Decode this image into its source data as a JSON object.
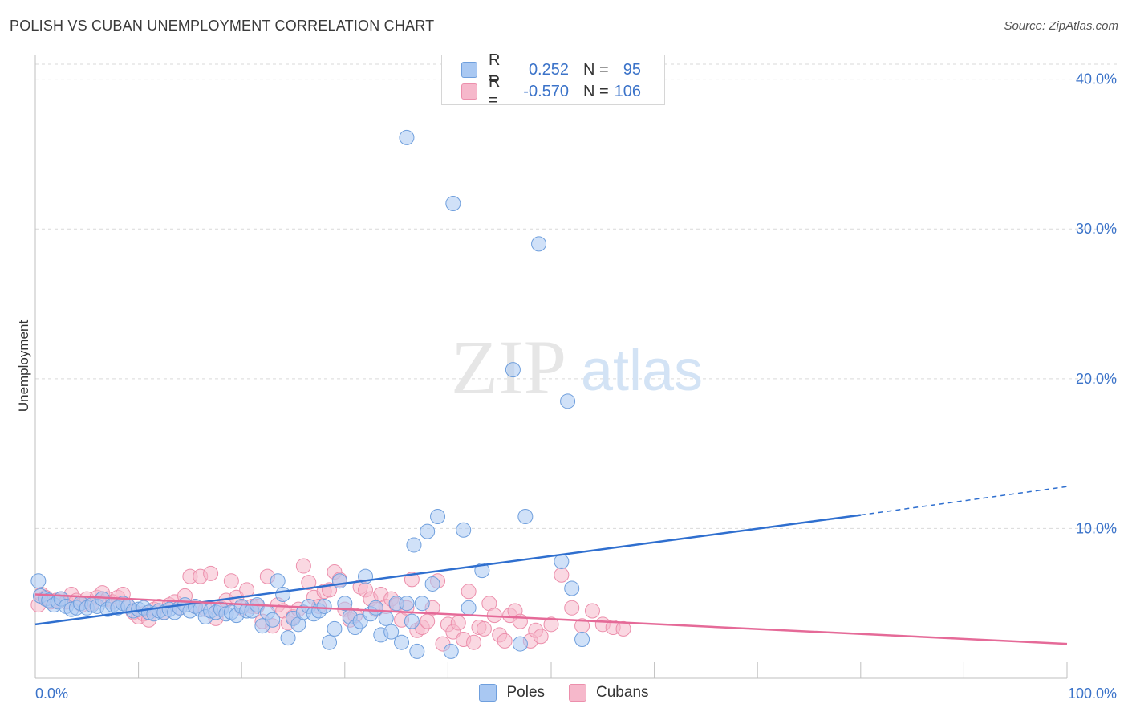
{
  "header": {
    "title": "POLISH VS CUBAN UNEMPLOYMENT CORRELATION CHART",
    "source": "Source: ZipAtlas.com"
  },
  "watermark": {
    "zip": "ZIP",
    "atlas": "atlas"
  },
  "legend": {
    "rows": [
      {
        "r_label": "R =",
        "r_value": "0.252",
        "n_label": "N =",
        "n_value": "95",
        "color": "#a9c8f2"
      },
      {
        "r_label": "R =",
        "r_value": "-0.570",
        "n_label": "N =",
        "n_value": "106",
        "color": "#f6b8cb"
      }
    ]
  },
  "bottom_legend": {
    "poles": "Poles",
    "cubans": "Cubans"
  },
  "colors": {
    "poles_fill": "#a9c8f2",
    "poles_stroke": "#6f9fdd",
    "poles_line": "#2f6fcf",
    "cubans_fill": "#f6b8cb",
    "cubans_stroke": "#ec8fac",
    "cubans_line": "#e56a98",
    "tick_text": "#3b73c9",
    "grid": "#d9d9d9"
  },
  "chart_data": {
    "type": "scatter",
    "title": "POLISH VS CUBAN UNEMPLOYMENT CORRELATION CHART",
    "xlabel": "",
    "ylabel": "Unemployment",
    "xlim": [
      0,
      100
    ],
    "ylim": [
      0,
      41
    ],
    "x_tick_labels": [
      "0.0%",
      "100.0%"
    ],
    "y_ticks": [
      10,
      20,
      30,
      40
    ],
    "y_tick_labels": [
      "10.0%",
      "20.0%",
      "30.0%",
      "40.0%"
    ],
    "grid": true,
    "legend_position": "top-center",
    "series": [
      {
        "name": "Poles",
        "r": 0.252,
        "n": 95,
        "trend": {
          "x": [
            0,
            80,
            100
          ],
          "y": [
            3.6,
            10.9,
            12.8
          ],
          "dashed_from_x": 80
        },
        "points": [
          [
            0.3,
            6.5
          ],
          [
            0.5,
            5.5
          ],
          [
            1,
            5.3
          ],
          [
            1.3,
            5.2
          ],
          [
            1.8,
            4.9
          ],
          [
            2.2,
            5.1
          ],
          [
            2.5,
            5.3
          ],
          [
            3,
            4.8
          ],
          [
            3.5,
            4.6
          ],
          [
            4,
            4.7
          ],
          [
            4.4,
            5
          ],
          [
            5,
            4.7
          ],
          [
            5.5,
            4.9
          ],
          [
            6,
            4.8
          ],
          [
            6.5,
            5.3
          ],
          [
            7,
            4.6
          ],
          [
            7.5,
            4.9
          ],
          [
            8,
            4.7
          ],
          [
            8.5,
            5
          ],
          [
            9,
            4.8
          ],
          [
            9.5,
            4.5
          ],
          [
            10,
            4.6
          ],
          [
            10.5,
            4.7
          ],
          [
            11,
            4.4
          ],
          [
            11.5,
            4.3
          ],
          [
            12,
            4.5
          ],
          [
            12.5,
            4.4
          ],
          [
            13,
            4.6
          ],
          [
            13.5,
            4.4
          ],
          [
            14,
            4.7
          ],
          [
            14.5,
            4.9
          ],
          [
            15,
            4.5
          ],
          [
            15.5,
            4.8
          ],
          [
            16,
            4.6
          ],
          [
            16.5,
            4.1
          ],
          [
            17,
            4.5
          ],
          [
            17.5,
            4.4
          ],
          [
            18,
            4.6
          ],
          [
            18.5,
            4.3
          ],
          [
            19,
            4.4
          ],
          [
            19.5,
            4.2
          ],
          [
            20,
            4.8
          ],
          [
            20.5,
            4.5
          ],
          [
            21,
            4.5
          ],
          [
            21.5,
            4.9
          ],
          [
            22,
            3.5
          ],
          [
            22.5,
            4.4
          ],
          [
            23,
            3.9
          ],
          [
            23.5,
            6.5
          ],
          [
            24,
            5.6
          ],
          [
            24.5,
            2.7
          ],
          [
            25,
            4
          ],
          [
            25.5,
            3.6
          ],
          [
            26,
            4.4
          ],
          [
            26.5,
            4.8
          ],
          [
            27,
            4.3
          ],
          [
            27.5,
            4.5
          ],
          [
            28,
            4.8
          ],
          [
            28.5,
            2.4
          ],
          [
            29,
            3.3
          ],
          [
            29.5,
            6.5
          ],
          [
            30,
            5
          ],
          [
            30.5,
            4.1
          ],
          [
            31,
            3.4
          ],
          [
            31.5,
            3.8
          ],
          [
            32,
            6.8
          ],
          [
            32.5,
            4.3
          ],
          [
            33,
            4.7
          ],
          [
            33.5,
            2.9
          ],
          [
            34,
            4
          ],
          [
            34.5,
            3.1
          ],
          [
            35,
            5
          ],
          [
            35.5,
            2.4
          ],
          [
            36,
            5
          ],
          [
            36.5,
            3.8
          ],
          [
            36.7,
            8.9
          ],
          [
            37,
            1.8
          ],
          [
            37.5,
            5
          ],
          [
            38,
            9.8
          ],
          [
            38.5,
            6.3
          ],
          [
            36,
            36.1
          ],
          [
            40.5,
            31.7
          ],
          [
            48.8,
            29
          ],
          [
            46.3,
            20.6
          ],
          [
            51.6,
            18.5
          ],
          [
            39,
            10.8
          ],
          [
            41.5,
            9.9
          ],
          [
            43.3,
            7.2
          ],
          [
            47.5,
            10.8
          ],
          [
            51,
            7.8
          ],
          [
            52,
            6
          ],
          [
            40.3,
            1.8
          ],
          [
            42,
            4.7
          ],
          [
            47,
            2.3
          ],
          [
            53,
            2.6
          ]
        ]
      },
      {
        "name": "Cubans",
        "r": -0.57,
        "n": 106,
        "trend": {
          "x": [
            0,
            100
          ],
          "y": [
            5.6,
            2.3
          ]
        },
        "points": [
          [
            0.3,
            4.9
          ],
          [
            0.6,
            5.6
          ],
          [
            1,
            5.4
          ],
          [
            1.5,
            5.1
          ],
          [
            2,
            5.2
          ],
          [
            2.5,
            5.3
          ],
          [
            3,
            5.1
          ],
          [
            3.5,
            5.6
          ],
          [
            4,
            5.2
          ],
          [
            4.5,
            4.9
          ],
          [
            5,
            5.3
          ],
          [
            5.5,
            5
          ],
          [
            6,
            5.4
          ],
          [
            6.5,
            5.7
          ],
          [
            7,
            5.3
          ],
          [
            7.5,
            5.1
          ],
          [
            8,
            5.4
          ],
          [
            8.5,
            5.6
          ],
          [
            9,
            4.8
          ],
          [
            9.5,
            4.4
          ],
          [
            10,
            4.1
          ],
          [
            10.5,
            4.3
          ],
          [
            11,
            3.9
          ],
          [
            11.5,
            4.6
          ],
          [
            12,
            4.8
          ],
          [
            12.5,
            4.4
          ],
          [
            13,
            4.9
          ],
          [
            13.5,
            5.1
          ],
          [
            14,
            4.7
          ],
          [
            14.5,
            5.5
          ],
          [
            15,
            6.8
          ],
          [
            15.5,
            4.8
          ],
          [
            16,
            6.8
          ],
          [
            16.5,
            4.6
          ],
          [
            17,
            7
          ],
          [
            17.5,
            4
          ],
          [
            18,
            4.7
          ],
          [
            18.5,
            5.2
          ],
          [
            19,
            6.5
          ],
          [
            19.5,
            5.4
          ],
          [
            20,
            4.7
          ],
          [
            20.5,
            5.9
          ],
          [
            21,
            4.8
          ],
          [
            21.5,
            4.8
          ],
          [
            22,
            3.8
          ],
          [
            22.5,
            6.8
          ],
          [
            23,
            3.5
          ],
          [
            23.5,
            4.9
          ],
          [
            24,
            4.5
          ],
          [
            24.5,
            3.7
          ],
          [
            25,
            4.1
          ],
          [
            25.5,
            4.6
          ],
          [
            26,
            7.5
          ],
          [
            26.5,
            6.4
          ],
          [
            27,
            5.4
          ],
          [
            27.5,
            4.8
          ],
          [
            28,
            5.8
          ],
          [
            28.5,
            5.9
          ],
          [
            29,
            7.1
          ],
          [
            29.5,
            6.6
          ],
          [
            30,
            4.6
          ],
          [
            30.5,
            3.9
          ],
          [
            31,
            4.2
          ],
          [
            31.5,
            6.1
          ],
          [
            32,
            5.9
          ],
          [
            32.5,
            5.3
          ],
          [
            33,
            4.6
          ],
          [
            33.5,
            5.6
          ],
          [
            34,
            4.8
          ],
          [
            34.5,
            5.3
          ],
          [
            35,
            4.9
          ],
          [
            35.5,
            3.9
          ],
          [
            36,
            4.7
          ],
          [
            36.5,
            6.6
          ],
          [
            37,
            3.2
          ],
          [
            37.5,
            3.4
          ],
          [
            38,
            3.8
          ],
          [
            38.5,
            4.7
          ],
          [
            39,
            6.5
          ],
          [
            39.5,
            2.3
          ],
          [
            40,
            3.6
          ],
          [
            40.5,
            3.1
          ],
          [
            41,
            3.7
          ],
          [
            41.5,
            2.6
          ],
          [
            42,
            5.8
          ],
          [
            42.5,
            2.4
          ],
          [
            43,
            3.4
          ],
          [
            43.5,
            3.3
          ],
          [
            44,
            5
          ],
          [
            44.5,
            4.2
          ],
          [
            45,
            2.9
          ],
          [
            45.5,
            2.5
          ],
          [
            46,
            4.2
          ],
          [
            46.5,
            4.5
          ],
          [
            47,
            3.8
          ],
          [
            48,
            2.5
          ],
          [
            48.5,
            3.2
          ],
          [
            49,
            2.8
          ],
          [
            50,
            3.6
          ],
          [
            51,
            6.9
          ],
          [
            52,
            4.7
          ],
          [
            53,
            3.5
          ],
          [
            54,
            4.5
          ],
          [
            55,
            3.6
          ],
          [
            56,
            3.4
          ],
          [
            57,
            3.3
          ]
        ]
      }
    ]
  }
}
